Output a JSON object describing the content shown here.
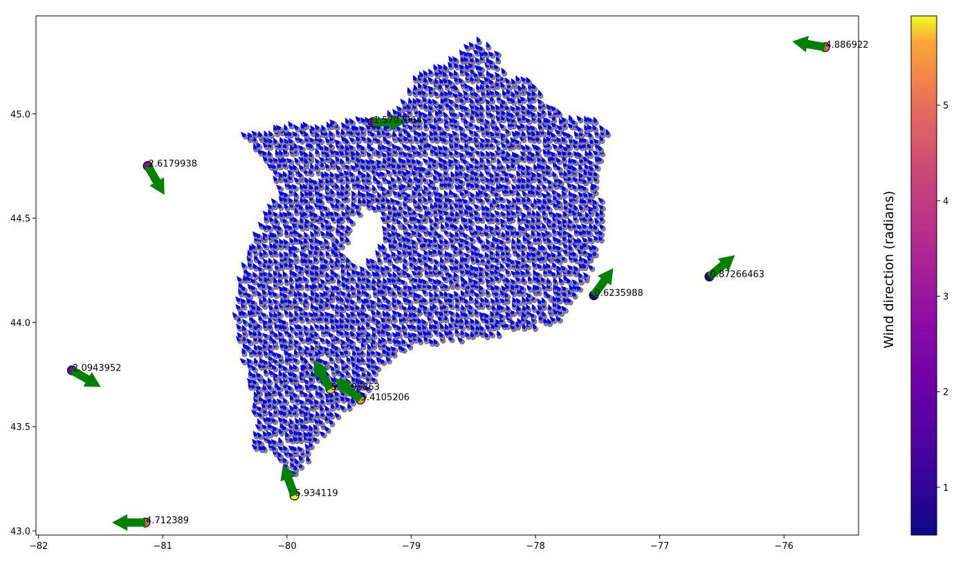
{
  "chart_data": {
    "type": "scatter",
    "title": "",
    "xlabel": "",
    "ylabel": "",
    "xlim": [
      -82.02,
      -75.4
    ],
    "ylim": [
      42.98,
      45.47
    ],
    "xticks": [
      -82,
      -81,
      -80,
      -79,
      -78,
      -77,
      -76
    ],
    "yticks": [
      43.0,
      43.5,
      44.0,
      44.5,
      45.0
    ],
    "xtick_labels": [
      "−82",
      "−81",
      "−80",
      "−79",
      "−78",
      "−77",
      "−76"
    ],
    "ytick_labels": [
      "43.0",
      "43.5",
      "44.0",
      "44.5",
      "45.0"
    ],
    "grid": false,
    "colorbar": {
      "label": "Wind direction (radians)",
      "colormap": "plasma",
      "range": [
        0.5,
        5.934119
      ],
      "ticks": [
        1,
        2,
        3,
        4,
        5
      ],
      "tick_labels": [
        "1",
        "2",
        "3",
        "4",
        "5"
      ]
    },
    "stations": [
      {
        "x": -75.67,
        "y": 45.32,
        "value": 4.886922,
        "label": "4.886922"
      },
      {
        "x": -79.31,
        "y": 44.96,
        "value": 1.5707964,
        "label": "1.5707964"
      },
      {
        "x": -81.12,
        "y": 44.75,
        "value": 2.6179938,
        "label": "2.6179938"
      },
      {
        "x": -76.6,
        "y": 44.22,
        "value": 0.87266463,
        "label": "0.87266463"
      },
      {
        "x": -77.53,
        "y": 44.13,
        "value": 0.6235988,
        "label": "0.6235988"
      },
      {
        "x": -81.73,
        "y": 43.77,
        "value": 2.0943952,
        "label": "2.0943952"
      },
      {
        "x": -79.65,
        "y": 43.68,
        "value": 5.7595863,
        "label": "5.7595863"
      },
      {
        "x": -79.41,
        "y": 43.63,
        "value": 5.4105206,
        "label": "5.4105206"
      },
      {
        "x": -79.94,
        "y": 43.17,
        "value": 5.934119,
        "label": "5.934119"
      },
      {
        "x": -81.14,
        "y": 43.04,
        "value": 4.712389,
        "label": "4.712389"
      }
    ],
    "field": {
      "description_free": true,
      "dot_color": "#8a7fa0",
      "arrow_color": "#0000ff",
      "dominant_direction_radians": 5.7
    },
    "colors": {
      "station_arrow": "#008000",
      "field_arrow": "#0000ff",
      "axes": "#000000"
    }
  }
}
